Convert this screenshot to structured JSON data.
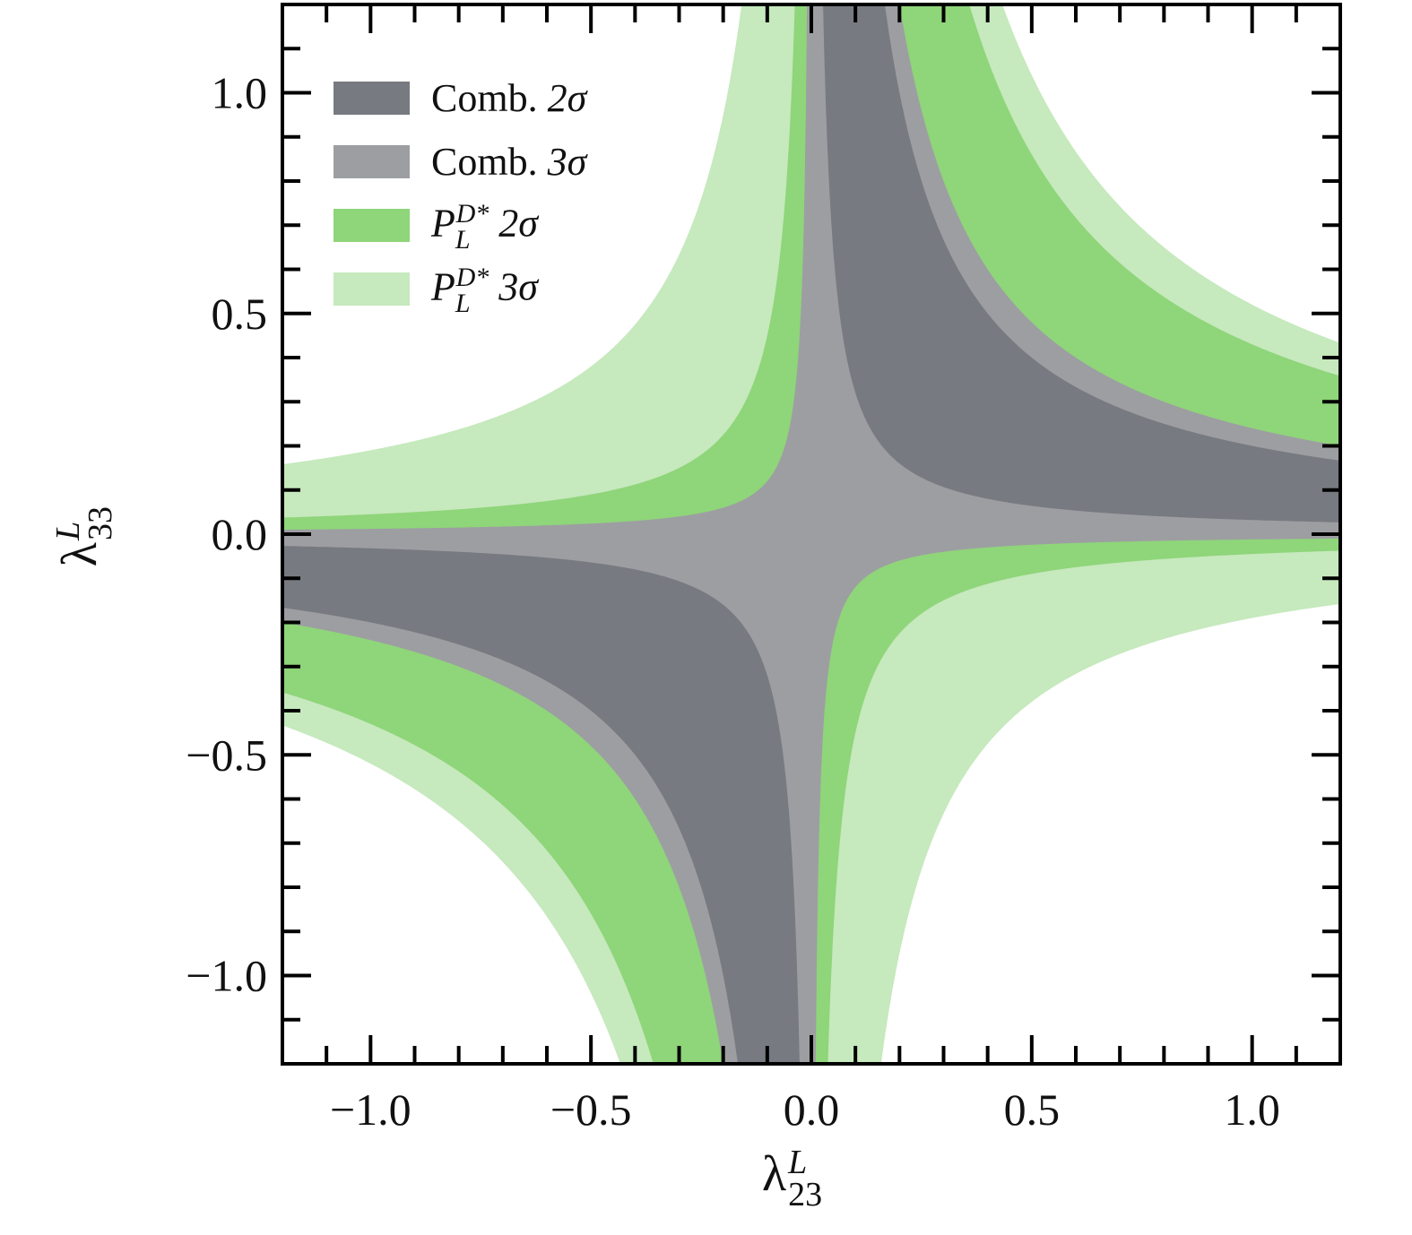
{
  "chart_data": {
    "type": "area",
    "title": "",
    "xlabel": {
      "symbol": "λ",
      "sup": "L",
      "sub": "23"
    },
    "ylabel": {
      "symbol": "λ",
      "sup": "L",
      "sub": "33"
    },
    "xlim": [
      -1.2,
      1.2
    ],
    "ylim": [
      -1.2,
      1.2
    ],
    "xticks": [
      -1.0,
      -0.5,
      0.0,
      0.5,
      1.0
    ],
    "yticks": [
      -1.0,
      -0.5,
      0.0,
      0.5,
      1.0
    ],
    "xtick_labels": [
      "−1.0",
      "−0.5",
      "0.0",
      "0.5",
      "1.0"
    ],
    "ytick_labels": [
      "−1.0",
      "−0.5",
      "0.0",
      "0.5",
      "1.0"
    ],
    "minor_tick_step": 0.1,
    "grid": false,
    "legend_position": "top-left",
    "region_model": "allowed band: product λ23·λ33 between lower and upper bound",
    "regions": [
      {
        "name": "PL_3sigma",
        "product_range": [
          -0.19,
          0.52
        ],
        "color": "#c6e9bd"
      },
      {
        "name": "PL_2sigma",
        "product_range": [
          -0.045,
          0.43
        ],
        "color": "#8fd57a"
      },
      {
        "name": "Comb_3sigma",
        "product_range": [
          -0.012,
          0.24
        ],
        "color": "#9d9ea2"
      },
      {
        "name": "Comb_2sigma",
        "product_range": [
          0.032,
          0.2
        ],
        "color": "#787a81"
      }
    ],
    "legend": [
      {
        "prefix": "Comb.",
        "level": "2σ",
        "color": "#787a81"
      },
      {
        "prefix": "Comb.",
        "level": "3σ",
        "color": "#9d9ea2"
      },
      {
        "P": "P",
        "sub": "L",
        "sup": "D*",
        "level": "2σ",
        "color": "#8fd57a"
      },
      {
        "P": "P",
        "sub": "L",
        "sup": "D*",
        "level": "3σ",
        "color": "#c6e9bd"
      }
    ]
  }
}
